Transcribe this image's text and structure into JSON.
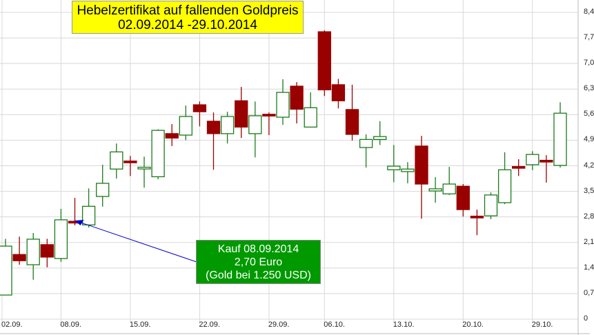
{
  "chart_data": {
    "type": "candlestick",
    "title": "Hebelzertifikat auf fallenden Goldpreis",
    "subtitle": "02.09.2014 -29.10.2014",
    "ylim": [
      0,
      8.4
    ],
    "yticks": [
      "0",
      "0,7",
      "1,4",
      "2,1",
      "2,8",
      "3,5",
      "4,2",
      "4,9",
      "5,6",
      "6,3",
      "7,0",
      "7,7",
      "8,4"
    ],
    "xticks": [
      {
        "label": "02.09.",
        "index": 0
      },
      {
        "label": "08.09.",
        "index": 4
      },
      {
        "label": "15.09.",
        "index": 9
      },
      {
        "label": "22.09.",
        "index": 14
      },
      {
        "label": "29.09.",
        "index": 19
      },
      {
        "label": "06.10.",
        "index": 23
      },
      {
        "label": "13.10.",
        "index": 28
      },
      {
        "label": "20.10.",
        "index": 33
      },
      {
        "label": "29.10.",
        "index": 38
      }
    ],
    "grid": true,
    "colors": {
      "up": "#1a7a1a",
      "down": "#990000",
      "title_bg": "#ffff00",
      "note_bg": "#009900",
      "arrow": "#0000cc"
    },
    "ohlc": [
      [
        0.66,
        2.2,
        0.66,
        2.0
      ],
      [
        1.77,
        2.26,
        1.49,
        1.6
      ],
      [
        1.49,
        2.36,
        1.08,
        2.19
      ],
      [
        2.04,
        2.2,
        1.42,
        1.7
      ],
      [
        1.66,
        3.02,
        1.57,
        2.72
      ],
      [
        2.68,
        3.32,
        2.57,
        2.64
      ],
      [
        2.58,
        3.58,
        2.51,
        3.09
      ],
      [
        3.36,
        4.23,
        3.08,
        3.72
      ],
      [
        4.11,
        4.81,
        3.85,
        4.58
      ],
      [
        4.33,
        4.47,
        3.92,
        4.31
      ],
      [
        4.14,
        4.45,
        3.6,
        4.16
      ],
      [
        3.9,
        5.2,
        3.83,
        5.17
      ],
      [
        5.08,
        5.34,
        4.74,
        4.96
      ],
      [
        5.04,
        5.85,
        4.9,
        5.55
      ],
      [
        5.87,
        5.96,
        5.28,
        5.68
      ],
      [
        5.42,
        5.66,
        4.09,
        5.08
      ],
      [
        5.08,
        5.68,
        4.81,
        5.55
      ],
      [
        5.98,
        6.36,
        4.96,
        5.26
      ],
      [
        5.08,
        5.96,
        4.43,
        5.57
      ],
      [
        5.61,
        5.66,
        5.04,
        5.59
      ],
      [
        5.53,
        6.57,
        5.32,
        6.21
      ],
      [
        6.38,
        6.49,
        5.36,
        5.75
      ],
      [
        5.26,
        6.21,
        5.25,
        5.79
      ],
      [
        7.87,
        7.91,
        6.11,
        6.28
      ],
      [
        6.42,
        6.58,
        5.77,
        5.98
      ],
      [
        5.74,
        6.42,
        4.89,
        5.06
      ],
      [
        4.7,
        5.06,
        4.15,
        4.92
      ],
      [
        4.92,
        5.42,
        4.77,
        5.0
      ],
      [
        4.09,
        4.77,
        3.75,
        4.19
      ],
      [
        4.04,
        4.3,
        3.72,
        4.11
      ],
      [
        4.74,
        5.02,
        2.75,
        3.7
      ],
      [
        3.51,
        3.89,
        3.19,
        3.57
      ],
      [
        3.43,
        4.17,
        3.4,
        3.7
      ],
      [
        3.64,
        3.7,
        2.81,
        3.0
      ],
      [
        2.82,
        3.0,
        2.3,
        2.8
      ],
      [
        2.83,
        3.47,
        2.74,
        3.4
      ],
      [
        3.19,
        4.57,
        3.15,
        4.09
      ],
      [
        4.18,
        4.38,
        3.92,
        4.16
      ],
      [
        4.23,
        4.6,
        4.08,
        4.51
      ],
      [
        4.35,
        4.49,
        3.74,
        4.33
      ],
      [
        4.21,
        5.94,
        4.15,
        5.64
      ]
    ],
    "annotation": {
      "lines": [
        "Kauf 08.09.2014",
        "2,70 Euro",
        "(Gold bei 1.250 USD)"
      ],
      "target_index": 5,
      "target_value": 2.7
    }
  }
}
